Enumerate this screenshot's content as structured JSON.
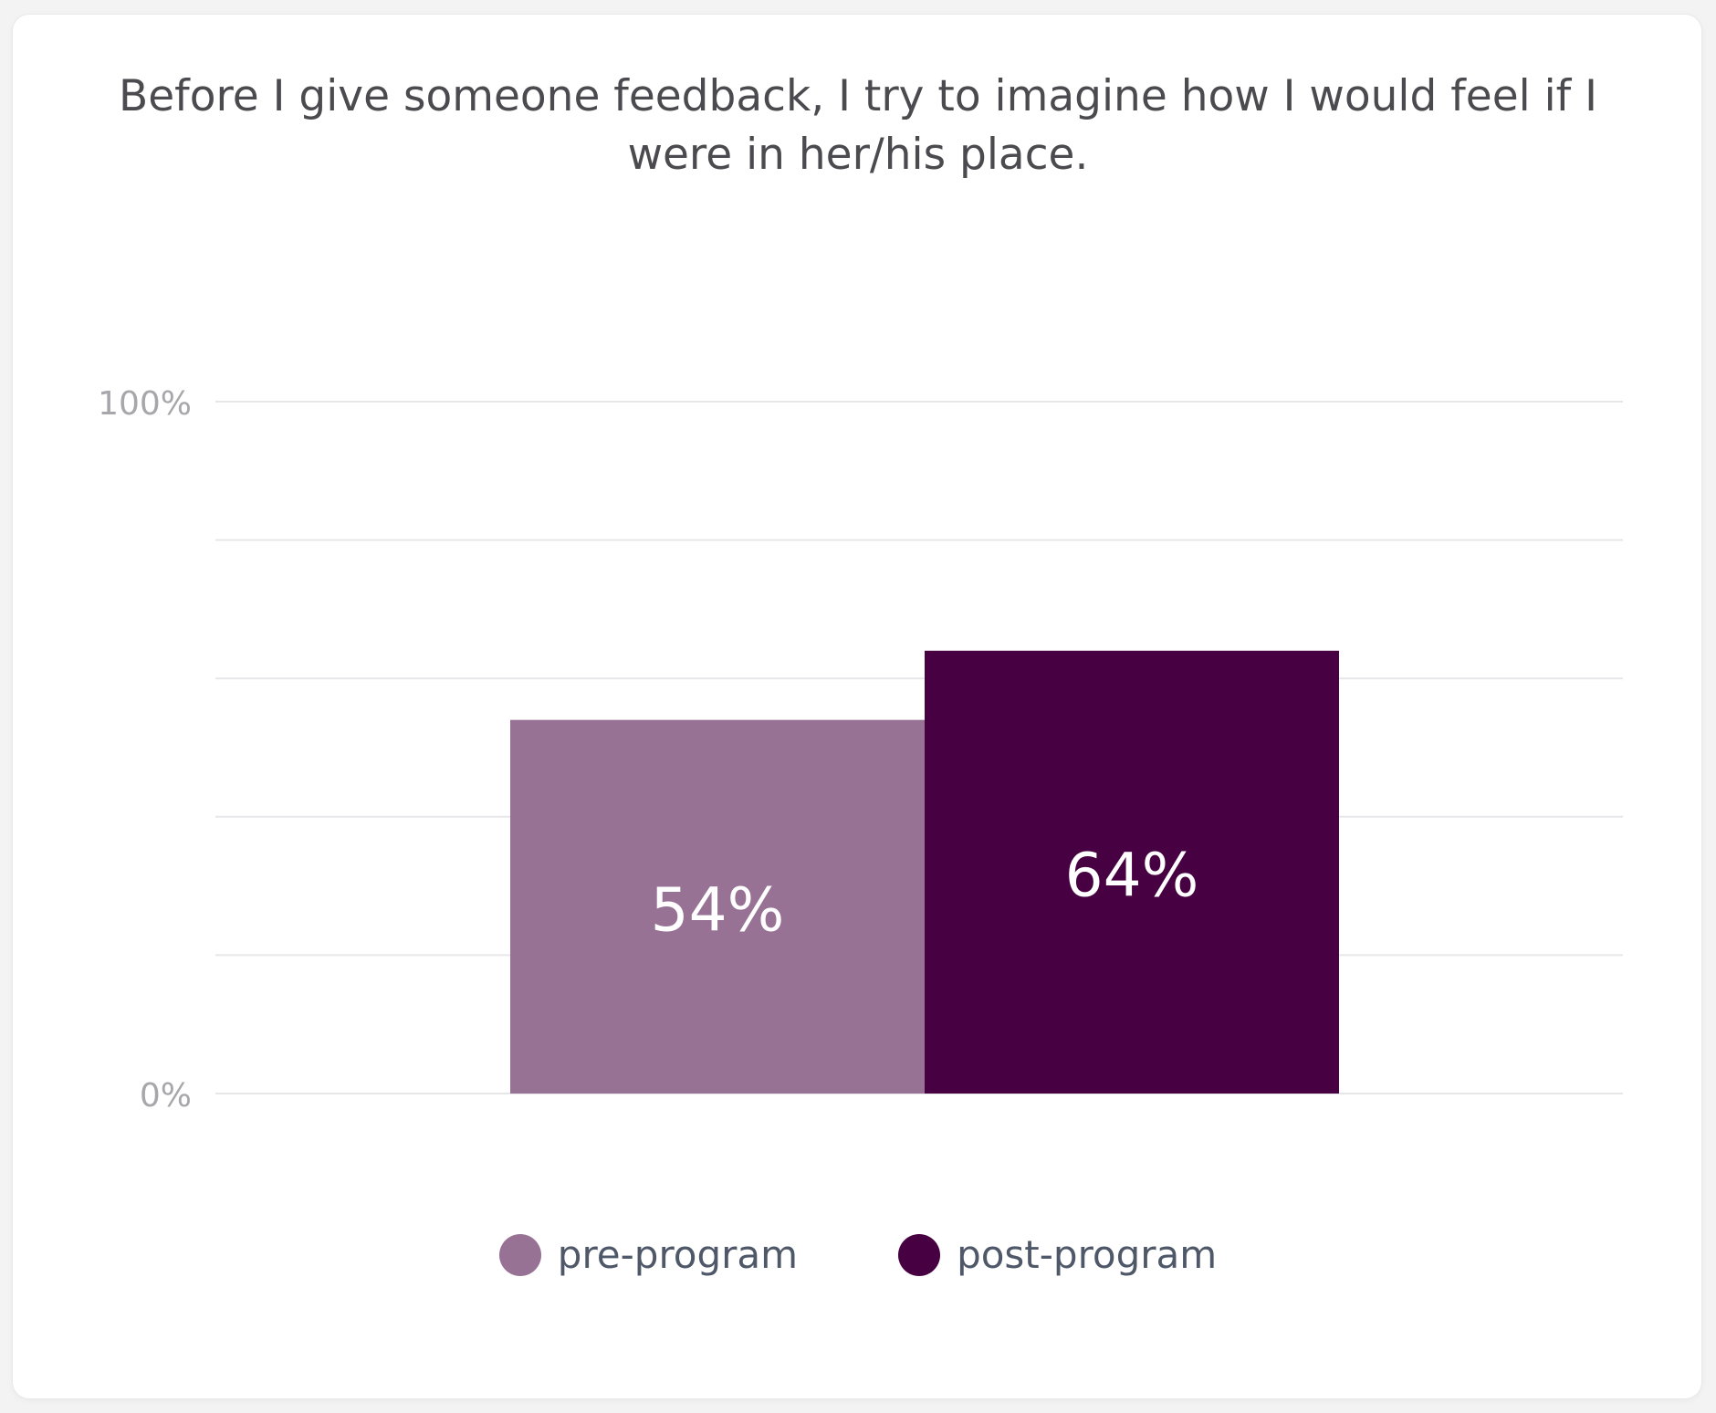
{
  "chart_data": {
    "type": "bar",
    "title": "Before I give someone feedback, I try to imagine how I would feel if I were in her/his place.",
    "categories": [
      ""
    ],
    "series": [
      {
        "name": "pre-program",
        "values": [
          54
        ],
        "color": "#977294",
        "label": "54%"
      },
      {
        "name": "post-program",
        "values": [
          64
        ],
        "color": "#470041",
        "label": "64%"
      }
    ],
    "ylim": [
      0,
      100
    ],
    "y_tick_labels": [
      "0%",
      "100%"
    ],
    "grid": true,
    "legend_position": "bottom-center"
  }
}
